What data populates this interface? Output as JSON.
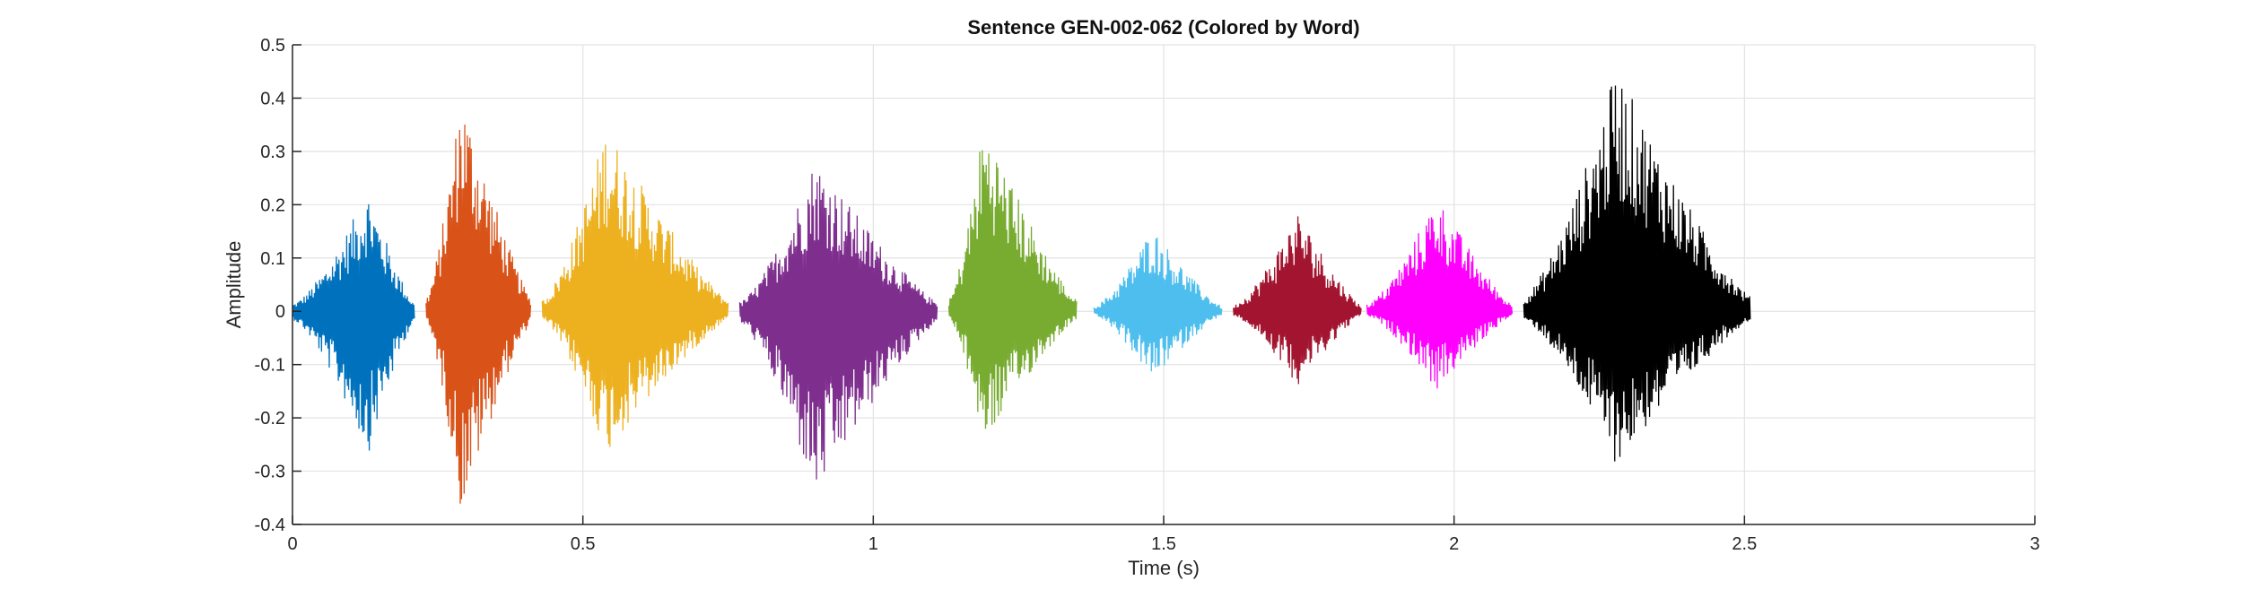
{
  "chart_data": {
    "type": "line",
    "title": "Sentence GEN-002-062 (Colored by Word)",
    "xlabel": "Time (s)",
    "ylabel": "Amplitude",
    "xlim": [
      0,
      3
    ],
    "ylim": [
      -0.4,
      0.5
    ],
    "x_ticks": [
      0,
      0.5,
      1,
      1.5,
      2,
      2.5,
      3
    ],
    "x_tick_labels": [
      "0",
      "0.5",
      "1",
      "1.5",
      "2",
      "2.5",
      "3"
    ],
    "y_ticks": [
      -0.4,
      -0.3,
      -0.2,
      -0.1,
      0,
      0.1,
      0.2,
      0.3,
      0.4,
      0.5
    ],
    "y_tick_labels": [
      "-0.4",
      "-0.3",
      "-0.2",
      "-0.1",
      "0",
      "0.1",
      "0.2",
      "0.3",
      "0.4",
      "0.5"
    ],
    "grid": true,
    "series": [
      {
        "color": "#0072BD",
        "start": 0.0,
        "end": 0.21,
        "peak_time": 0.13,
        "max": 0.23,
        "min": -0.27
      },
      {
        "color": "#D95319",
        "start": 0.23,
        "end": 0.41,
        "peak_time": 0.29,
        "max": 0.42,
        "min": -0.38
      },
      {
        "color": "#EDB120",
        "start": 0.43,
        "end": 0.75,
        "peak_time": 0.54,
        "max": 0.35,
        "min": -0.27
      },
      {
        "color": "#7E2F8E",
        "start": 0.77,
        "end": 1.11,
        "peak_time": 0.9,
        "max": 0.29,
        "min": -0.35
      },
      {
        "color": "#77AC30",
        "start": 1.13,
        "end": 1.35,
        "peak_time": 1.19,
        "max": 0.36,
        "min": -0.25
      },
      {
        "color": "#4DBEEE",
        "start": 1.38,
        "end": 1.6,
        "peak_time": 1.48,
        "max": 0.16,
        "min": -0.13
      },
      {
        "color": "#A2142F",
        "start": 1.62,
        "end": 1.84,
        "peak_time": 1.73,
        "max": 0.19,
        "min": -0.14
      },
      {
        "color": "#FF00FF",
        "start": 1.85,
        "end": 2.1,
        "peak_time": 1.97,
        "max": 0.22,
        "min": -0.15
      },
      {
        "color": "#000000",
        "start": 2.12,
        "end": 2.51,
        "peak_time": 2.28,
        "max": 0.46,
        "min": -0.29
      }
    ]
  }
}
